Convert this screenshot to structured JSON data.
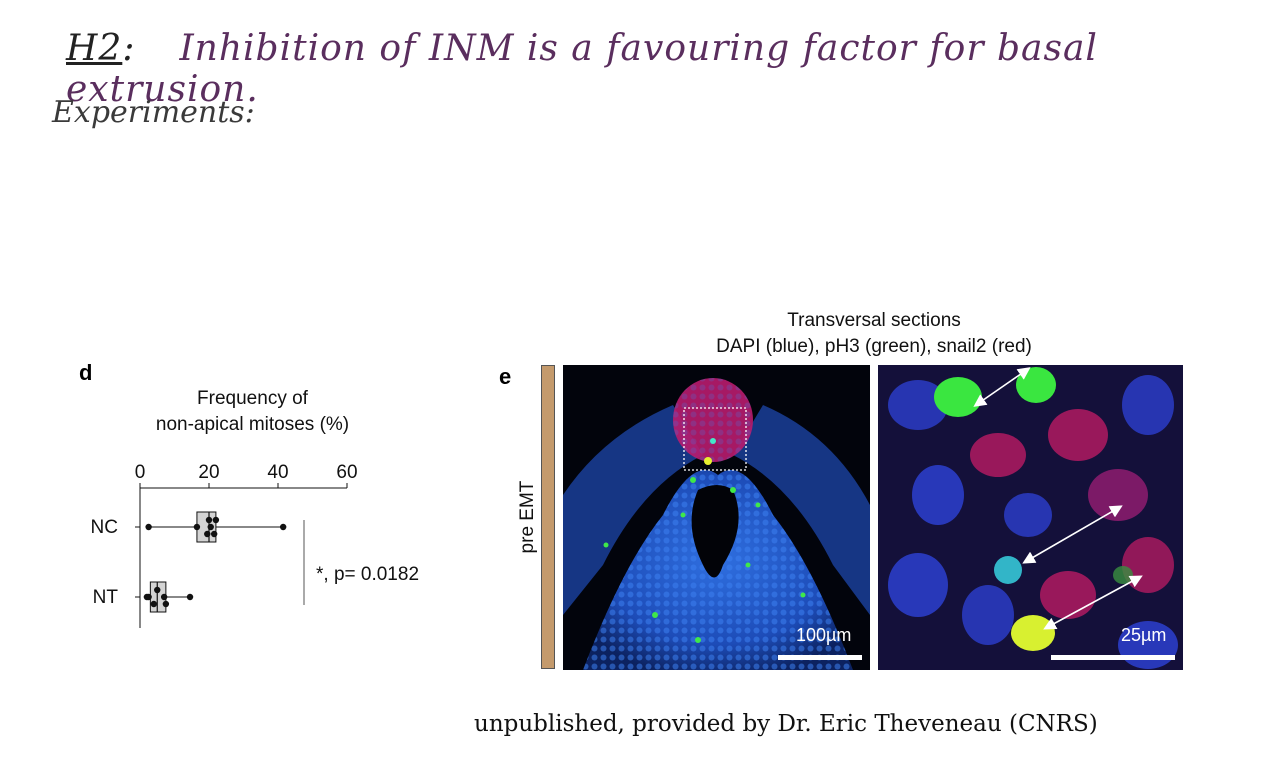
{
  "heading": {
    "tag": "H2",
    "colon": ":",
    "hypothesis": "Inhibition of INM is a favouring factor for basal extrusion."
  },
  "experiments_label": "Experiments:",
  "panel_d": {
    "letter": "d",
    "title_line1": "Frequency of",
    "title_line2": "non-apical mitoses (%)",
    "significance": "*, p= 0.0182"
  },
  "panel_e": {
    "letter": "e",
    "title_line1": "Transversal sections",
    "title_line2": "DAPI (blue), pH3 (green), snail2 (red)",
    "stage_label": "pre EMT",
    "scale_left": "100µm",
    "scale_right": "25µm",
    "colors": {
      "stage_bar": "#c49a6c",
      "dapi": "#1e5bd8",
      "ph3": "#39e64a",
      "snail2": "#e0185a"
    }
  },
  "chart_data": {
    "type": "box",
    "title": "Frequency of non-apical mitoses (%)",
    "xlim": [
      0,
      60
    ],
    "xticks": [
      "0",
      "20",
      "40",
      "60"
    ],
    "categories": [
      "NC",
      "NT"
    ],
    "series": [
      {
        "name": "NC",
        "min": 2.5,
        "q1": 16.5,
        "median": 20,
        "q3": 22,
        "max": 41.5,
        "points": [
          2.5,
          16.5,
          19.5,
          20,
          20.5,
          21.5,
          22,
          41.5
        ]
      },
      {
        "name": "NT",
        "min": 2,
        "q1": 3,
        "median": 5,
        "q3": 7.5,
        "max": 14.5,
        "points": [
          2,
          2.5,
          4,
          5,
          7,
          7.5,
          14.5
        ]
      }
    ],
    "annotation": "*, p= 0.0182",
    "grid": false
  },
  "footer": "unpublished, provided by Dr. Eric Theveneau (CNRS)"
}
